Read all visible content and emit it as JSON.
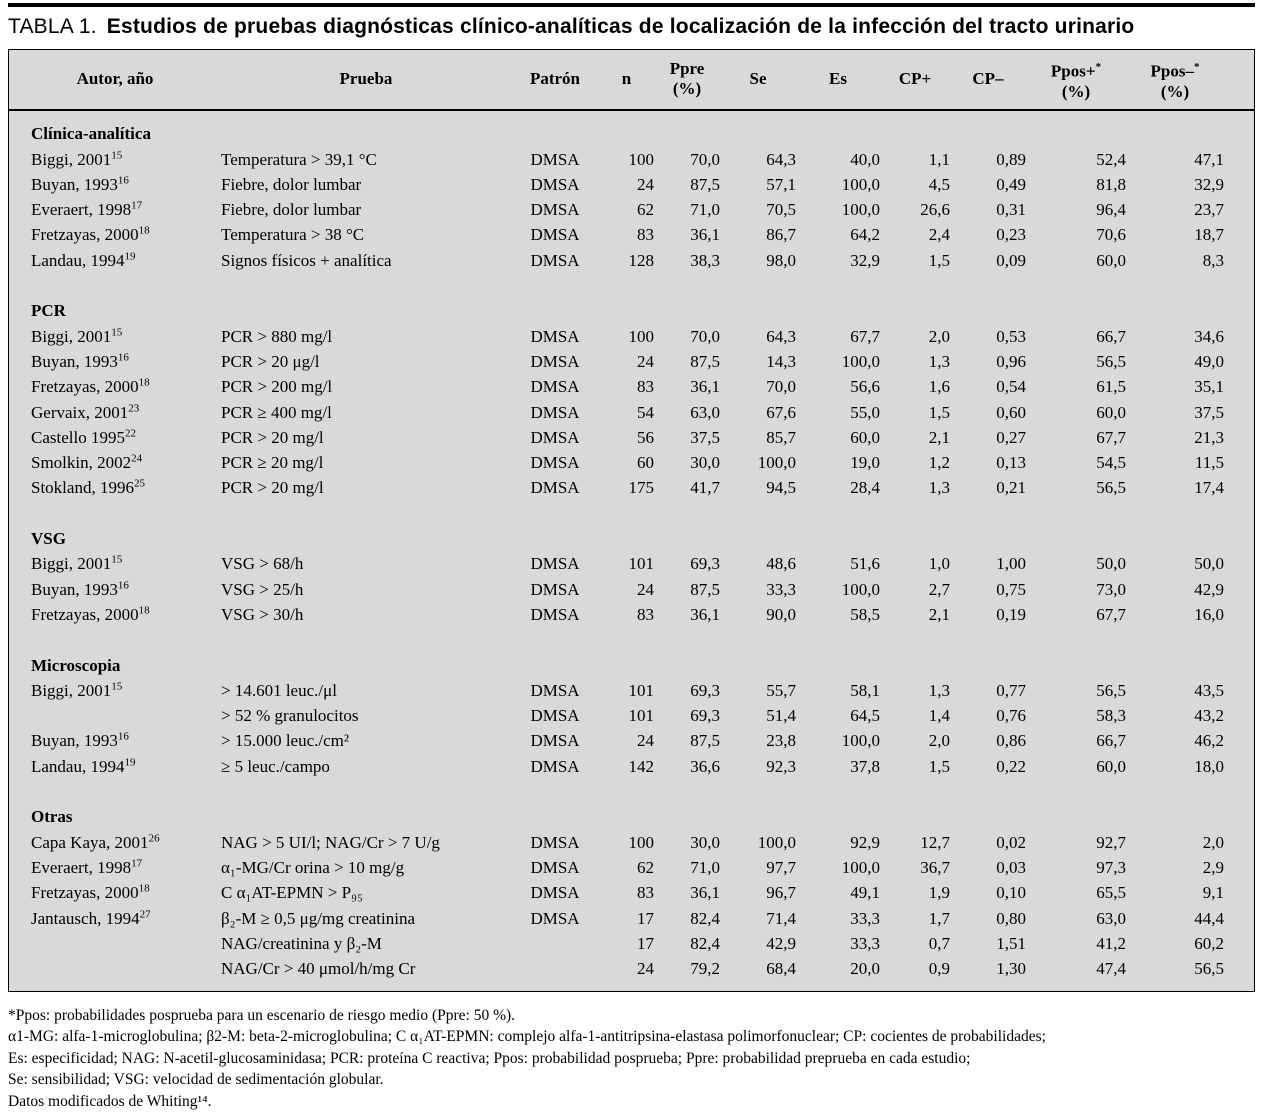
{
  "title": {
    "tag": "TABLA 1.",
    "text": "Estudios de pruebas diagnósticas clínico-analíticas de localización de la infección del tracto urinario"
  },
  "table": {
    "columns": [
      {
        "label": "Autor, año"
      },
      {
        "label": "Prueba"
      },
      {
        "label": "Patrón"
      },
      {
        "label": "n"
      },
      {
        "label": "Ppre",
        "unit": "(%)"
      },
      {
        "label": "Se"
      },
      {
        "label": "Es"
      },
      {
        "label": "CP+"
      },
      {
        "label": "CP–"
      },
      {
        "label": "Ppos+",
        "sup": "*",
        "unit": "(%)"
      },
      {
        "label": "Ppos–",
        "sup": "*",
        "unit": "(%)"
      }
    ],
    "sections": [
      {
        "name": "Clínica-analítica",
        "rows": [
          {
            "autor": "Biggi, 2001",
            "ref": "15",
            "prueba": "Temperatura > 39,1 °C",
            "patron": "DMSA",
            "n": "100",
            "ppre": "70,0",
            "se": "64,3",
            "es": "40,0",
            "cp_pos": "1,1",
            "cp_neg": "0,89",
            "ppos_pos": "52,4",
            "ppos_neg": "47,1"
          },
          {
            "autor": "Buyan, 1993",
            "ref": "16",
            "prueba": "Fiebre, dolor lumbar",
            "patron": "DMSA",
            "n": "24",
            "ppre": "87,5",
            "se": "57,1",
            "es": "100,0",
            "cp_pos": "4,5",
            "cp_neg": "0,49",
            "ppos_pos": "81,8",
            "ppos_neg": "32,9"
          },
          {
            "autor": "Everaert, 1998",
            "ref": "17",
            "prueba": "Fiebre, dolor lumbar",
            "patron": "DMSA",
            "n": "62",
            "ppre": "71,0",
            "se": "70,5",
            "es": "100,0",
            "cp_pos": "26,6",
            "cp_neg": "0,31",
            "ppos_pos": "96,4",
            "ppos_neg": "23,7"
          },
          {
            "autor": "Fretzayas, 2000",
            "ref": "18",
            "prueba": "Temperatura > 38 °C",
            "patron": "DMSA",
            "n": "83",
            "ppre": "36,1",
            "se": "86,7",
            "es": "64,2",
            "cp_pos": "2,4",
            "cp_neg": "0,23",
            "ppos_pos": "70,6",
            "ppos_neg": "18,7"
          },
          {
            "autor": "Landau, 1994",
            "ref": "19",
            "prueba": "Signos físicos + analítica",
            "patron": "DMSA",
            "n": "128",
            "ppre": "38,3",
            "se": "98,0",
            "es": "32,9",
            "cp_pos": "1,5",
            "cp_neg": "0,09",
            "ppos_pos": "60,0",
            "ppos_neg": "8,3"
          }
        ]
      },
      {
        "name": "PCR",
        "rows": [
          {
            "autor": "Biggi, 2001",
            "ref": "15",
            "prueba": "PCR > 880 mg/l",
            "patron": "DMSA",
            "n": "100",
            "ppre": "70,0",
            "se": "64,3",
            "es": "67,7",
            "cp_pos": "2,0",
            "cp_neg": "0,53",
            "ppos_pos": "66,7",
            "ppos_neg": "34,6"
          },
          {
            "autor": "Buyan, 1993",
            "ref": "16",
            "prueba": "PCR > 20 μg/l",
            "patron": "DMSA",
            "n": "24",
            "ppre": "87,5",
            "se": "14,3",
            "es": "100,0",
            "cp_pos": "1,3",
            "cp_neg": "0,96",
            "ppos_pos": "56,5",
            "ppos_neg": "49,0"
          },
          {
            "autor": "Fretzayas, 2000",
            "ref": "18",
            "prueba": "PCR > 200 mg/l",
            "patron": "DMSA",
            "n": "83",
            "ppre": "36,1",
            "se": "70,0",
            "es": "56,6",
            "cp_pos": "1,6",
            "cp_neg": "0,54",
            "ppos_pos": "61,5",
            "ppos_neg": "35,1"
          },
          {
            "autor": "Gervaix, 2001",
            "ref": "23",
            "prueba": "PCR ≥ 400 mg/l",
            "patron": "DMSA",
            "n": "54",
            "ppre": "63,0",
            "se": "67,6",
            "es": "55,0",
            "cp_pos": "1,5",
            "cp_neg": "0,60",
            "ppos_pos": "60,0",
            "ppos_neg": "37,5"
          },
          {
            "autor": "Castello 1995",
            "ref": "22",
            "prueba": "PCR > 20 mg/l",
            "patron": "DMSA",
            "n": "56",
            "ppre": "37,5",
            "se": "85,7",
            "es": "60,0",
            "cp_pos": "2,1",
            "cp_neg": "0,27",
            "ppos_pos": "67,7",
            "ppos_neg": "21,3"
          },
          {
            "autor": "Smolkin, 2002",
            "ref": "24",
            "prueba": "PCR ≥ 20 mg/l",
            "patron": "DMSA",
            "n": "60",
            "ppre": "30,0",
            "se": "100,0",
            "es": "19,0",
            "cp_pos": "1,2",
            "cp_neg": "0,13",
            "ppos_pos": "54,5",
            "ppos_neg": "11,5"
          },
          {
            "autor": "Stokland, 1996",
            "ref": "25",
            "prueba": "PCR > 20 mg/l",
            "patron": "DMSA",
            "n": "175",
            "ppre": "41,7",
            "se": "94,5",
            "es": "28,4",
            "cp_pos": "1,3",
            "cp_neg": "0,21",
            "ppos_pos": "56,5",
            "ppos_neg": "17,4"
          }
        ]
      },
      {
        "name": "VSG",
        "rows": [
          {
            "autor": "Biggi, 2001",
            "ref": "15",
            "prueba": "VSG > 68/h",
            "patron": "DMSA",
            "n": "101",
            "ppre": "69,3",
            "se": "48,6",
            "es": "51,6",
            "cp_pos": "1,0",
            "cp_neg": "1,00",
            "ppos_pos": "50,0",
            "ppos_neg": "50,0"
          },
          {
            "autor": "Buyan, 1993",
            "ref": "16",
            "prueba": "VSG > 25/h",
            "patron": "DMSA",
            "n": "24",
            "ppre": "87,5",
            "se": "33,3",
            "es": "100,0",
            "cp_pos": "2,7",
            "cp_neg": "0,75",
            "ppos_pos": "73,0",
            "ppos_neg": "42,9"
          },
          {
            "autor": "Fretzayas, 2000",
            "ref": "18",
            "prueba": "VSG > 30/h",
            "patron": "DMSA",
            "n": "83",
            "ppre": "36,1",
            "se": "90,0",
            "es": "58,5",
            "cp_pos": "2,1",
            "cp_neg": "0,19",
            "ppos_pos": "67,7",
            "ppos_neg": "16,0"
          }
        ]
      },
      {
        "name": "Microscopia",
        "rows": [
          {
            "autor": "Biggi, 2001",
            "ref": "15",
            "prueba": "> 14.601 leuc./μl",
            "patron": "DMSA",
            "n": "101",
            "ppre": "69,3",
            "se": "55,7",
            "es": "58,1",
            "cp_pos": "1,3",
            "cp_neg": "0,77",
            "ppos_pos": "56,5",
            "ppos_neg": "43,5"
          },
          {
            "autor": "",
            "ref": "",
            "prueba": "> 52 % granulocitos",
            "patron": "DMSA",
            "n": "101",
            "ppre": "69,3",
            "se": "51,4",
            "es": "64,5",
            "cp_pos": "1,4",
            "cp_neg": "0,76",
            "ppos_pos": "58,3",
            "ppos_neg": "43,2"
          },
          {
            "autor": "Buyan, 1993",
            "ref": "16",
            "prueba": "> 15.000 leuc./cm²",
            "patron": "DMSA",
            "n": "24",
            "ppre": "87,5",
            "se": "23,8",
            "es": "100,0",
            "cp_pos": "2,0",
            "cp_neg": "0,86",
            "ppos_pos": "66,7",
            "ppos_neg": "46,2"
          },
          {
            "autor": "Landau, 1994",
            "ref": "19",
            "prueba": "≥ 5 leuc./campo",
            "patron": "DMSA",
            "n": "142",
            "ppre": "36,6",
            "se": "92,3",
            "es": "37,8",
            "cp_pos": "1,5",
            "cp_neg": "0,22",
            "ppos_pos": "60,0",
            "ppos_neg": "18,0"
          }
        ]
      },
      {
        "name": "Otras",
        "rows": [
          {
            "autor": "Capa Kaya, 2001",
            "ref": "26",
            "prueba": "NAG > 5 UI/l; NAG/Cr > 7 U/g",
            "patron": "DMSA",
            "n": "100",
            "ppre": "30,0",
            "se": "100,0",
            "es": "92,9",
            "cp_pos": "12,7",
            "cp_neg": "0,02",
            "ppos_pos": "92,7",
            "ppos_neg": "2,0"
          },
          {
            "autor": "Everaert, 1998",
            "ref": "17",
            "prueba": "α₁-MG/Cr orina > 10 mg/g",
            "patron": "DMSA",
            "n": "62",
            "ppre": "71,0",
            "se": "97,7",
            "es": "100,0",
            "cp_pos": "36,7",
            "cp_neg": "0,03",
            "ppos_pos": "97,3",
            "ppos_neg": "2,9"
          },
          {
            "autor": "Fretzayas, 2000",
            "ref": "18",
            "prueba": "C α₁AT-EPMN > P₉₅",
            "patron": "DMSA",
            "n": "83",
            "ppre": "36,1",
            "se": "96,7",
            "es": "49,1",
            "cp_pos": "1,9",
            "cp_neg": "0,10",
            "ppos_pos": "65,5",
            "ppos_neg": "9,1"
          },
          {
            "autor": "Jantausch, 1994",
            "ref": "27",
            "prueba": "β₂-M ≥ 0,5 μg/mg creatinina",
            "patron": "DMSA",
            "n": "17",
            "ppre": "82,4",
            "se": "71,4",
            "es": "33,3",
            "cp_pos": "1,7",
            "cp_neg": "0,80",
            "ppos_pos": "63,0",
            "ppos_neg": "44,4"
          },
          {
            "autor": "",
            "ref": "",
            "prueba": "NAG/creatinina y β₂-M",
            "patron": "",
            "n": "17",
            "ppre": "82,4",
            "se": "42,9",
            "es": "33,3",
            "cp_pos": "0,7",
            "cp_neg": "1,51",
            "ppos_pos": "41,2",
            "ppos_neg": "60,2"
          },
          {
            "autor": "",
            "ref": "",
            "prueba": "NAG/Cr > 40 μmol/h/mg Cr",
            "patron": "",
            "n": "24",
            "ppre": "79,2",
            "se": "68,4",
            "es": "20,0",
            "cp_pos": "0,9",
            "cp_neg": "1,30",
            "ppos_pos": "47,4",
            "ppos_neg": "56,5"
          }
        ]
      }
    ]
  },
  "footnotes": [
    "*Ppos: probabilidades posprueba para un escenario de riesgo medio (Ppre: 50 %).",
    "α1-MG: alfa-1-microglobulina; β2-M: beta-2-microglobulina; C α₁AT-EPMN: complejo alfa-1-antitripsina-elastasa polimorfonuclear; CP: cocientes de probabilidades;",
    "Es: especificidad; NAG: N-acetil-glucosaminidasa; PCR: proteína C reactiva; Ppos: probabilidad posprueba; Ppre: probabilidad preprueba en cada estudio;",
    "Se: sensibilidad; VSG: velocidad de sedimentación globular.",
    "Datos modificados de Whiting¹⁴."
  ],
  "colors": {
    "table_background": "#d9d9d9",
    "border": "#000000",
    "text": "#000000"
  }
}
